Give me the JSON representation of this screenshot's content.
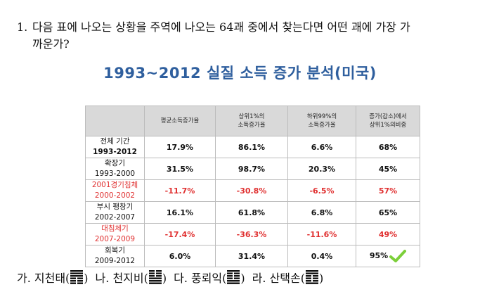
{
  "question": {
    "number": "1.",
    "line1": "다음 표에 나오는 상황을 주역에 나오는 64괘 중에서 찾는다면 어떤 괘에 가장 가",
    "line2": "까운가?"
  },
  "chart_data": {
    "type": "table",
    "title": "1993~2012 실질 소득 증가 분석(미국)",
    "columns": [
      "",
      "평균소득증가율",
      "상위1%의\n소득증가율",
      "하위99%의\n소득증가율",
      "증가(감소)에서\n상위1%의비중"
    ],
    "rows": [
      {
        "label1": "전체 기간",
        "label2": "1993-2012",
        "values": [
          "17.9%",
          "86.1%",
          "6.6%",
          "68%"
        ],
        "red": false,
        "bold": true
      },
      {
        "label1": "확장기",
        "label2": "1993-2000",
        "values": [
          "31.5%",
          "98.7%",
          "20.3%",
          "45%"
        ],
        "red": false,
        "bold": false
      },
      {
        "label1": "2001경기침체",
        "label2": "2000-2002",
        "values": [
          "-11.7%",
          "-30.8%",
          "-6.5%",
          "57%"
        ],
        "red": true,
        "bold": false
      },
      {
        "label1": "부시 팽창기",
        "label2": "2002-2007",
        "values": [
          "16.1%",
          "61.8%",
          "6.8%",
          "65%"
        ],
        "red": false,
        "bold": false
      },
      {
        "label1": "대침체기",
        "label2": "2007-2009",
        "values": [
          "-17.4%",
          "-36.3%",
          "-11.6%",
          "49%"
        ],
        "red": true,
        "bold": false
      },
      {
        "label1": "회복기",
        "label2": "2009-2012",
        "values": [
          "6.0%",
          "31.4%",
          "0.4%",
          "95%"
        ],
        "red": false,
        "bold": false
      }
    ]
  },
  "check_color": "#7ccf3a",
  "options": [
    {
      "prefix": "가.",
      "name": "지천태(",
      "suffix": ")",
      "icon": "hexagram-tai-icon",
      "lines": [
        1,
        1,
        1,
        0,
        0,
        0
      ]
    },
    {
      "prefix": "나.",
      "name": "천지비(",
      "suffix": ")",
      "icon": "hexagram-pi-icon",
      "lines": [
        0,
        0,
        0,
        1,
        1,
        1
      ]
    },
    {
      "prefix": "다.",
      "name": "풍뢰익(",
      "suffix": ")",
      "icon": "hexagram-yi-icon",
      "lines": [
        1,
        0,
        0,
        0,
        1,
        1
      ]
    },
    {
      "prefix": "라.",
      "name": "산택손(",
      "suffix": ")",
      "icon": "hexagram-sun-icon",
      "lines": [
        1,
        1,
        0,
        0,
        0,
        1
      ]
    }
  ]
}
